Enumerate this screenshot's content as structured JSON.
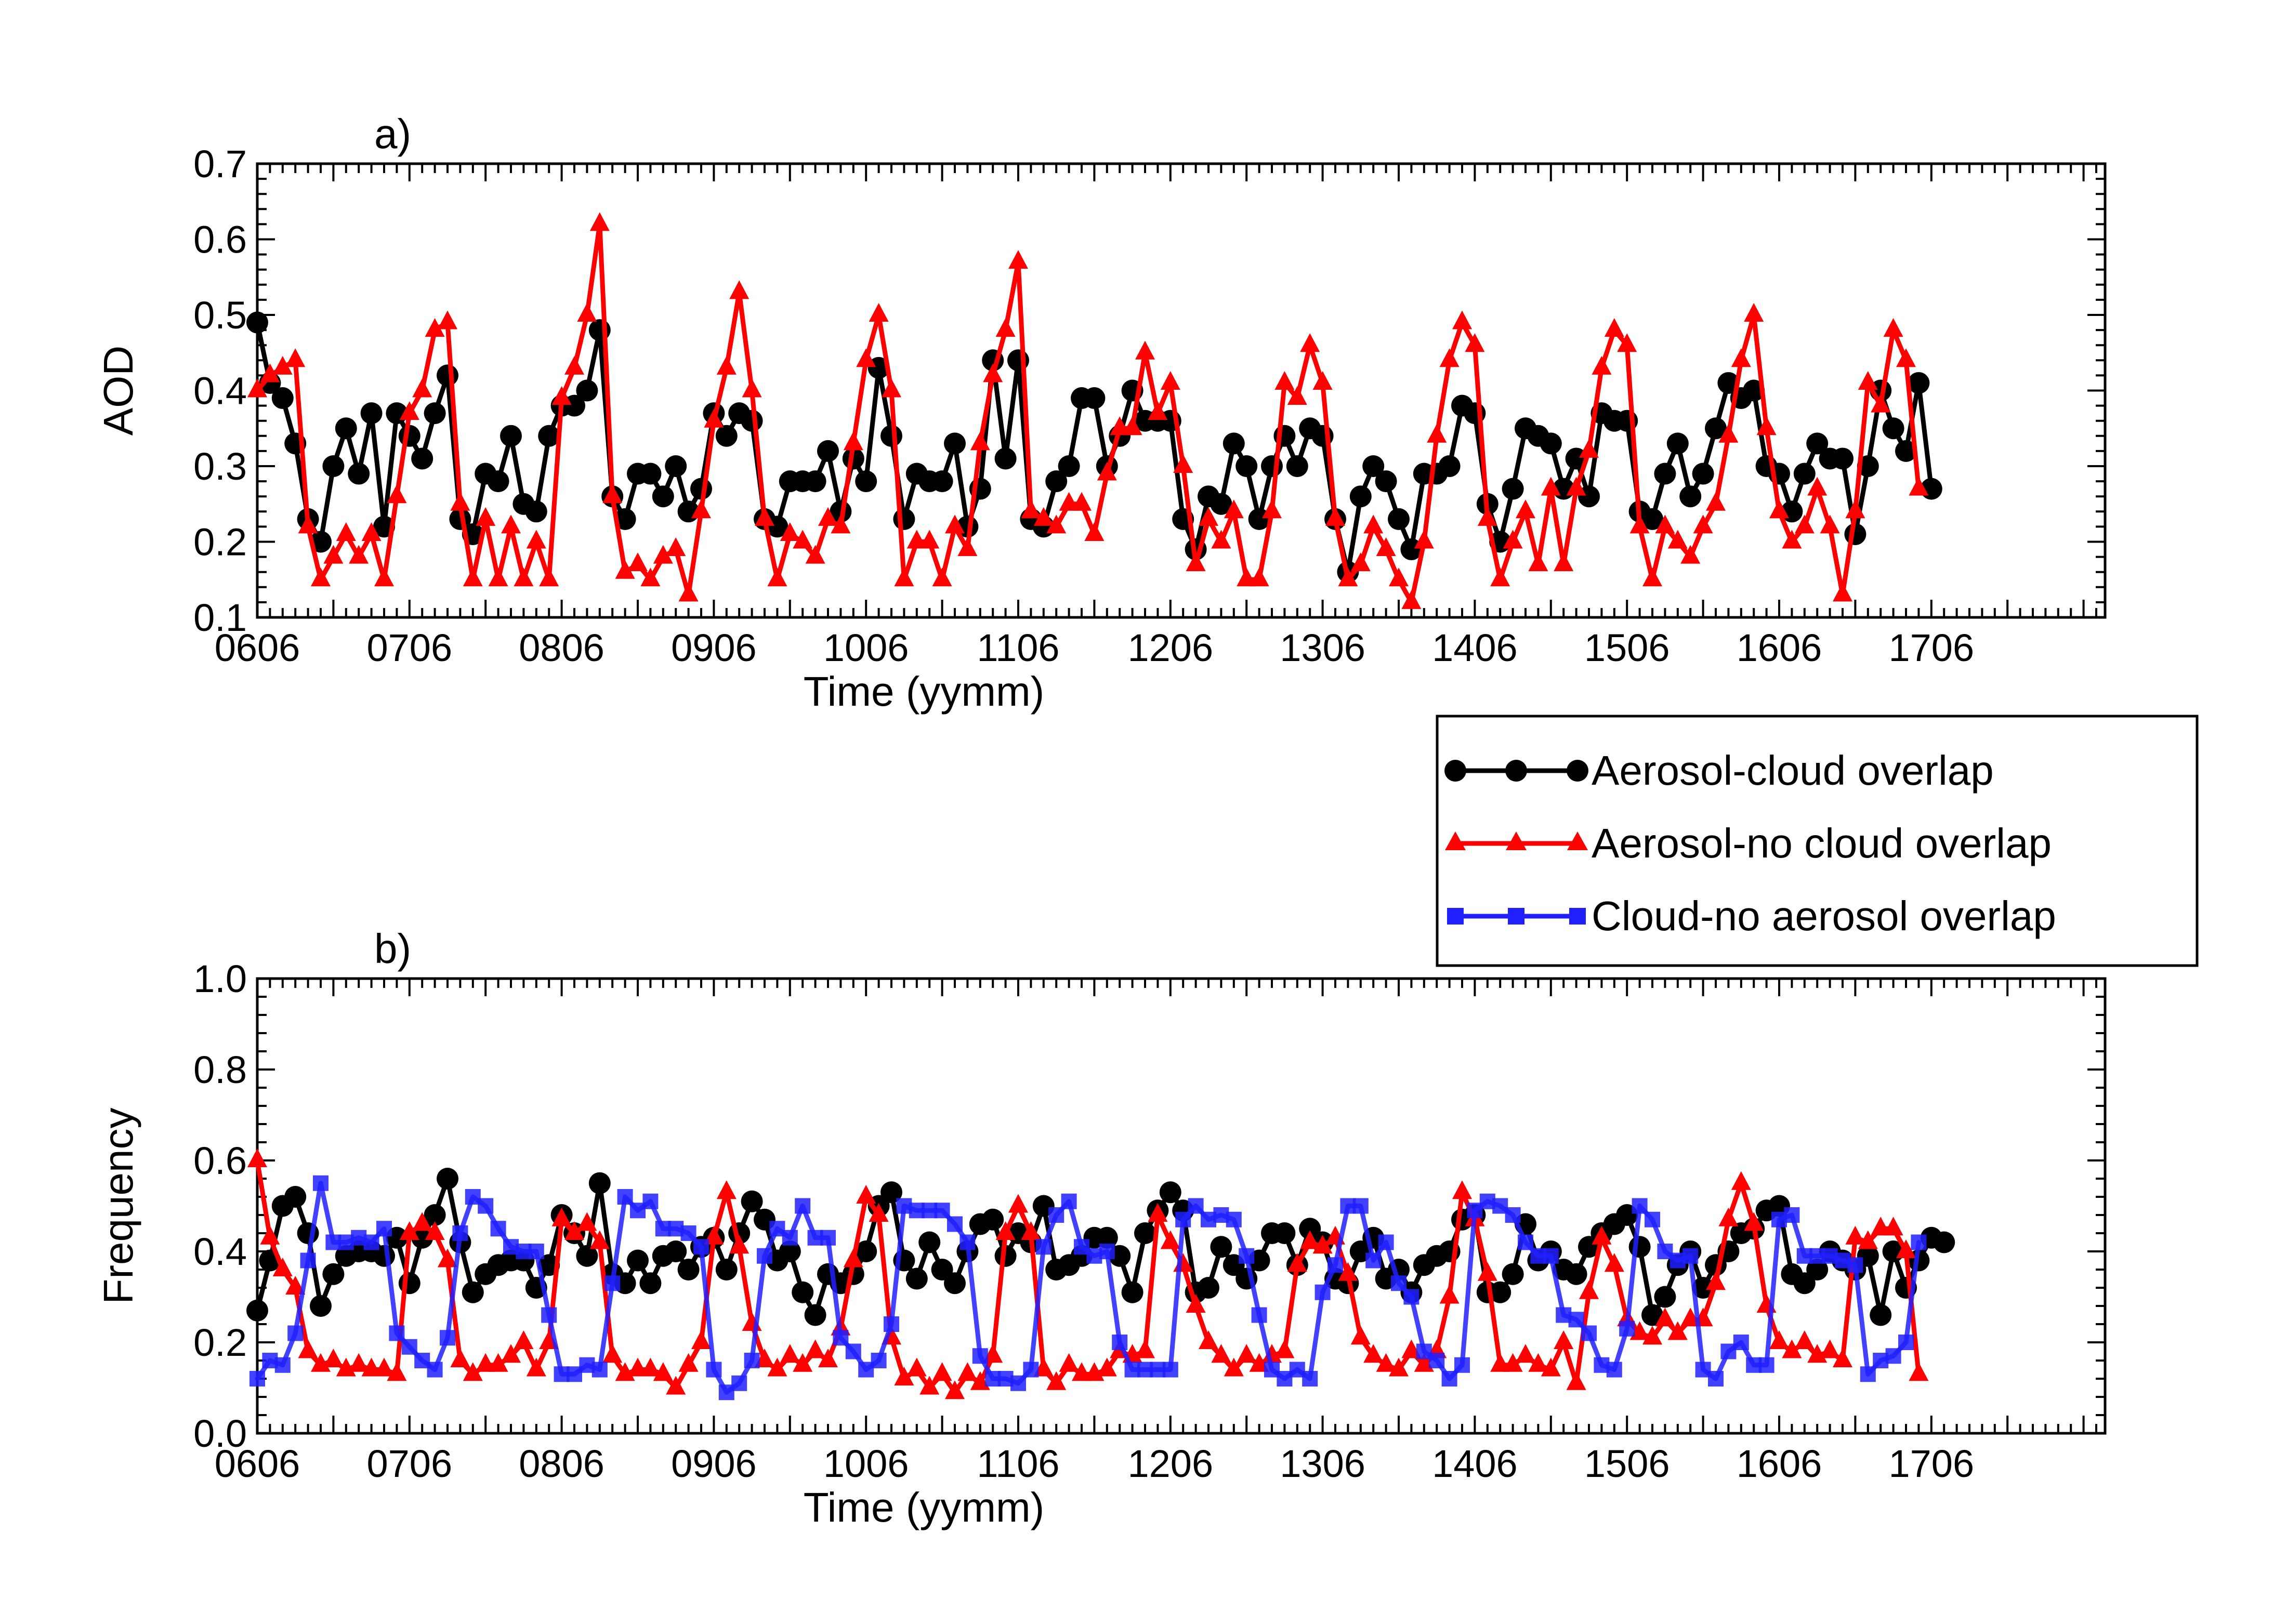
{
  "chart_data": [
    {
      "panel": "a)",
      "type": "line",
      "xlabel": "Time (yymm)",
      "ylabel": "AOD",
      "ylim": [
        0.1,
        0.7
      ],
      "yticks": [
        "0.1",
        "0.2",
        "0.3",
        "0.4",
        "0.5",
        "0.6",
        "0.7"
      ],
      "xticks": [
        "0606",
        "0706",
        "0806",
        "0906",
        "1006",
        "1106",
        "1206",
        "1306",
        "1406",
        "1506",
        "1606",
        "1706"
      ],
      "grid": false,
      "series": [
        {
          "name": "Aerosol-cloud overlap",
          "color": "#000000",
          "marker": "circle",
          "values": [
            0.49,
            0.41,
            0.39,
            0.33,
            0.23,
            0.2,
            0.3,
            0.35,
            0.29,
            0.37,
            0.22,
            0.37,
            0.34,
            0.31,
            0.37,
            0.42,
            0.23,
            0.21,
            0.29,
            0.28,
            0.34,
            0.25,
            0.24,
            0.34,
            0.38,
            0.38,
            0.4,
            0.48,
            0.26,
            0.23,
            0.29,
            0.29,
            0.26,
            0.3,
            0.24,
            0.27,
            0.37,
            0.34,
            0.37,
            0.36,
            0.23,
            0.22,
            0.28,
            0.28,
            0.28,
            0.32,
            0.24,
            0.31,
            0.28,
            0.43,
            0.34,
            0.23,
            0.29,
            0.28,
            0.28,
            0.33,
            0.22,
            0.27,
            0.44,
            0.31,
            0.44,
            0.23,
            0.22,
            0.28,
            0.3,
            0.39,
            0.39,
            0.3,
            0.34,
            0.4,
            0.36,
            0.36,
            0.36,
            0.23,
            0.19,
            0.26,
            0.25,
            0.33,
            0.3,
            0.23,
            0.3,
            0.34,
            0.3,
            0.35,
            0.34,
            0.23,
            0.16,
            0.26,
            0.3,
            0.28,
            0.23,
            0.19,
            0.29,
            0.29,
            0.3,
            0.38,
            0.37,
            0.25,
            0.2,
            0.27,
            0.35,
            0.34,
            0.33,
            0.27,
            0.31,
            0.26,
            0.37,
            0.36,
            0.36,
            0.24,
            0.23,
            0.29,
            0.33,
            0.26,
            0.29,
            0.35,
            0.41,
            0.39,
            0.4,
            0.3,
            0.29,
            0.24,
            0.29,
            0.33,
            0.31,
            0.31,
            0.21,
            0.3,
            0.4,
            0.35,
            0.32,
            0.41,
            0.27
          ]
        },
        {
          "name": "Aerosol-no cloud overlap",
          "color": "#ff0000",
          "marker": "triangle",
          "values": [
            0.4,
            0.42,
            0.43,
            0.44,
            0.22,
            0.15,
            0.18,
            0.21,
            0.18,
            0.21,
            0.15,
            0.26,
            0.37,
            0.4,
            0.48,
            0.49,
            0.25,
            0.15,
            0.23,
            0.15,
            0.22,
            0.15,
            0.2,
            0.15,
            0.39,
            0.43,
            0.5,
            0.62,
            0.26,
            0.16,
            0.17,
            0.15,
            0.18,
            0.19,
            0.13,
            0.24,
            0.36,
            0.43,
            0.53,
            0.4,
            0.23,
            0.15,
            0.21,
            0.2,
            0.18,
            0.23,
            0.22,
            0.33,
            0.44,
            0.5,
            0.4,
            0.15,
            0.2,
            0.2,
            0.15,
            0.22,
            0.19,
            0.33,
            0.42,
            0.48,
            0.57,
            0.24,
            0.23,
            0.22,
            0.25,
            0.25,
            0.21,
            0.29,
            0.35,
            0.35,
            0.45,
            0.37,
            0.41,
            0.3,
            0.17,
            0.23,
            0.2,
            0.24,
            0.15,
            0.15,
            0.24,
            0.41,
            0.39,
            0.46,
            0.41,
            0.23,
            0.15,
            0.17,
            0.22,
            0.19,
            0.15,
            0.12,
            0.2,
            0.34,
            0.44,
            0.49,
            0.46,
            0.23,
            0.15,
            0.2,
            0.24,
            0.17,
            0.27,
            0.17,
            0.27,
            0.32,
            0.43,
            0.48,
            0.46,
            0.22,
            0.15,
            0.22,
            0.2,
            0.18,
            0.22,
            0.25,
            0.34,
            0.44,
            0.5,
            0.35,
            0.24,
            0.2,
            0.22,
            0.27,
            0.22,
            0.13,
            0.24,
            0.41,
            0.38,
            0.48,
            0.44,
            0.27
          ]
        }
      ]
    },
    {
      "panel": "b)",
      "type": "line",
      "xlabel": "Time (yymm)",
      "ylabel": "Frequency",
      "ylim": [
        0.0,
        1.0
      ],
      "yticks": [
        "0.0",
        "0.2",
        "0.4",
        "0.6",
        "0.8",
        "1.0"
      ],
      "xticks": [
        "0606",
        "0706",
        "0806",
        "0906",
        "1006",
        "1106",
        "1206",
        "1306",
        "1406",
        "1506",
        "1606",
        "1706"
      ],
      "grid": false,
      "series": [
        {
          "name": "Aerosol-cloud overlap",
          "color": "#000000",
          "marker": "circle",
          "values": [
            0.27,
            0.38,
            0.5,
            0.52,
            0.44,
            0.28,
            0.35,
            0.39,
            0.4,
            0.4,
            0.39,
            0.43,
            0.33,
            0.43,
            0.48,
            0.56,
            0.42,
            0.31,
            0.35,
            0.37,
            0.38,
            0.38,
            0.32,
            0.37,
            0.48,
            0.44,
            0.39,
            0.55,
            0.35,
            0.33,
            0.38,
            0.33,
            0.39,
            0.4,
            0.36,
            0.41,
            0.43,
            0.36,
            0.44,
            0.51,
            0.47,
            0.38,
            0.4,
            0.31,
            0.26,
            0.35,
            0.33,
            0.35,
            0.4,
            0.5,
            0.53,
            0.38,
            0.34,
            0.42,
            0.36,
            0.33,
            0.4,
            0.46,
            0.47,
            0.39,
            0.44,
            0.42,
            0.5,
            0.36,
            0.37,
            0.39,
            0.43,
            0.43,
            0.39,
            0.31,
            0.44,
            0.49,
            0.53,
            0.49,
            0.31,
            0.32,
            0.41,
            0.37,
            0.34,
            0.38,
            0.44,
            0.44,
            0.37,
            0.45,
            0.42,
            0.34,
            0.33,
            0.4,
            0.43,
            0.34,
            0.36,
            0.31,
            0.37,
            0.39,
            0.4,
            0.47,
            0.48,
            0.31,
            0.31,
            0.35,
            0.46,
            0.38,
            0.4,
            0.36,
            0.35,
            0.41,
            0.44,
            0.46,
            0.48,
            0.41,
            0.26,
            0.3,
            0.37,
            0.4,
            0.32,
            0.37,
            0.4,
            0.44,
            0.45,
            0.49,
            0.5,
            0.35,
            0.33,
            0.36,
            0.4,
            0.38,
            0.36,
            0.39,
            0.26,
            0.4,
            0.32,
            0.38,
            0.43,
            0.42
          ]
        },
        {
          "name": "Aerosol-no cloud overlap",
          "color": "#ff0000",
          "marker": "triangle",
          "values": [
            0.6,
            0.43,
            0.36,
            0.32,
            0.18,
            0.15,
            0.16,
            0.14,
            0.15,
            0.14,
            0.14,
            0.13,
            0.44,
            0.46,
            0.44,
            0.38,
            0.16,
            0.13,
            0.15,
            0.15,
            0.17,
            0.2,
            0.14,
            0.2,
            0.47,
            0.44,
            0.46,
            0.42,
            0.17,
            0.13,
            0.14,
            0.14,
            0.13,
            0.1,
            0.15,
            0.2,
            0.43,
            0.53,
            0.41,
            0.24,
            0.16,
            0.14,
            0.17,
            0.15,
            0.18,
            0.16,
            0.23,
            0.38,
            0.52,
            0.48,
            0.21,
            0.12,
            0.14,
            0.1,
            0.13,
            0.09,
            0.13,
            0.11,
            0.17,
            0.44,
            0.5,
            0.44,
            0.14,
            0.11,
            0.15,
            0.13,
            0.13,
            0.14,
            0.18,
            0.17,
            0.18,
            0.48,
            0.42,
            0.37,
            0.28,
            0.2,
            0.17,
            0.14,
            0.17,
            0.15,
            0.17,
            0.18,
            0.37,
            0.42,
            0.41,
            0.43,
            0.35,
            0.21,
            0.17,
            0.15,
            0.14,
            0.18,
            0.15,
            0.18,
            0.3,
            0.53,
            0.47,
            0.35,
            0.15,
            0.15,
            0.17,
            0.15,
            0.14,
            0.2,
            0.11,
            0.31,
            0.43,
            0.37,
            0.25,
            0.22,
            0.21,
            0.25,
            0.22,
            0.25,
            0.25,
            0.33,
            0.47,
            0.55,
            0.46,
            0.28,
            0.2,
            0.18,
            0.2,
            0.17,
            0.18,
            0.16,
            0.43,
            0.42,
            0.45,
            0.45,
            0.4,
            0.13
          ]
        },
        {
          "name": "Cloud-no aerosol overlap",
          "color": "#2020ff",
          "marker": "square",
          "values": [
            0.12,
            0.16,
            0.15,
            0.22,
            0.38,
            0.55,
            0.42,
            0.42,
            0.43,
            0.42,
            0.45,
            0.22,
            0.19,
            0.16,
            0.14,
            0.21,
            0.44,
            0.52,
            0.5,
            0.45,
            0.41,
            0.4,
            0.4,
            0.26,
            0.13,
            0.13,
            0.15,
            0.14,
            0.33,
            0.52,
            0.49,
            0.51,
            0.45,
            0.45,
            0.44,
            0.41,
            0.14,
            0.09,
            0.11,
            0.16,
            0.39,
            0.45,
            0.43,
            0.5,
            0.43,
            0.43,
            0.21,
            0.18,
            0.14,
            0.16,
            0.24,
            0.5,
            0.49,
            0.49,
            0.49,
            0.46,
            0.42,
            0.17,
            0.12,
            0.12,
            0.11,
            0.14,
            0.41,
            0.48,
            0.51,
            0.41,
            0.39,
            0.4,
            0.2,
            0.14,
            0.14,
            0.14,
            0.14,
            0.47,
            0.5,
            0.47,
            0.48,
            0.47,
            0.39,
            0.26,
            0.14,
            0.12,
            0.14,
            0.12,
            0.31,
            0.37,
            0.5,
            0.5,
            0.38,
            0.42,
            0.33,
            0.3,
            0.18,
            0.16,
            0.12,
            0.15,
            0.49,
            0.51,
            0.5,
            0.48,
            0.42,
            0.39,
            0.39,
            0.26,
            0.25,
            0.22,
            0.15,
            0.14,
            0.23,
            0.5,
            0.47,
            0.4,
            0.38,
            0.39,
            0.14,
            0.12,
            0.18,
            0.2,
            0.15,
            0.15,
            0.47,
            0.48,
            0.39,
            0.39,
            0.39,
            0.38,
            0.37,
            0.13,
            0.16,
            0.17,
            0.2,
            0.42
          ]
        }
      ]
    }
  ],
  "legend": {
    "entries": [
      "Aerosol-cloud overlap",
      "Aerosol-no cloud overlap",
      "Cloud-no aerosol overlap"
    ],
    "placement": "between panels, right"
  }
}
